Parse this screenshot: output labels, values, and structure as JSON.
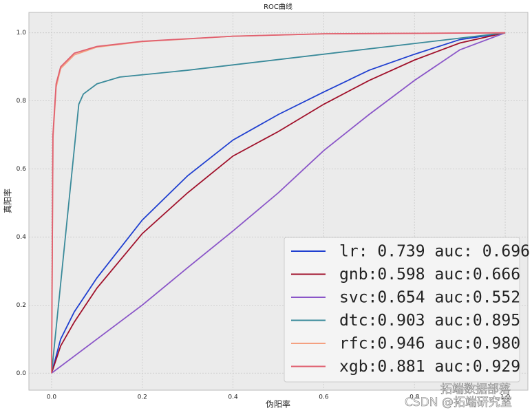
{
  "chart_data": {
    "type": "line",
    "title": "ROC曲线",
    "x_label": "伪阳率",
    "y_label": "真阳率",
    "xlim": [
      -0.05,
      1.05
    ],
    "ylim": [
      -0.05,
      1.06
    ],
    "grid": true,
    "legend": "lower right",
    "xticks": [
      {
        "value": 0,
        "label": "0.0"
      },
      {
        "value": 0.2,
        "label": "0.2"
      },
      {
        "value": 0.4,
        "label": "0.4"
      },
      {
        "value": 0.6,
        "label": "0.6"
      },
      {
        "value": 0.8,
        "label": "0.8"
      },
      {
        "value": 1,
        "label": "1.0"
      }
    ],
    "yticks": [
      {
        "value": 0,
        "label": "0.0"
      },
      {
        "value": 0.2,
        "label": "0.2"
      },
      {
        "value": 0.4,
        "label": "0.4"
      },
      {
        "value": 0.6,
        "label": "0.6"
      },
      {
        "value": 0.8,
        "label": "0.8"
      },
      {
        "value": 1,
        "label": "1.0"
      }
    ],
    "series": [
      {
        "name": "lr: 0.739 auc: 0.696",
        "color": "#1f3fd0",
        "x": [
          0,
          0.02,
          0.05,
          0.1,
          0.2,
          0.3,
          0.4,
          0.5,
          0.6,
          0.7,
          0.8,
          0.9,
          1
        ],
        "values": [
          0,
          0.1,
          0.18,
          0.28,
          0.45,
          0.58,
          0.685,
          0.76,
          0.826,
          0.89,
          0.937,
          0.98,
          1
        ]
      },
      {
        "name": "gnb:0.598 auc:0.666",
        "color": "#a0102a",
        "x": [
          0,
          0.02,
          0.05,
          0.1,
          0.2,
          0.3,
          0.4,
          0.5,
          0.6,
          0.7,
          0.8,
          0.9,
          1
        ],
        "values": [
          0,
          0.08,
          0.15,
          0.25,
          0.41,
          0.53,
          0.638,
          0.71,
          0.79,
          0.86,
          0.92,
          0.97,
          1
        ]
      },
      {
        "name": "svc:0.654 auc:0.552",
        "color": "#8a55c8",
        "x": [
          0,
          0.05,
          0.1,
          0.2,
          0.3,
          0.4,
          0.5,
          0.6,
          0.7,
          0.8,
          0.9,
          1
        ],
        "values": [
          0,
          0.05,
          0.1,
          0.2,
          0.31,
          0.418,
          0.53,
          0.654,
          0.76,
          0.86,
          0.95,
          1
        ]
      },
      {
        "name": "dtc:0.903 auc:0.895",
        "color": "#3a8a9a",
        "x": [
          0,
          0.06,
          0.07,
          0.1,
          0.15,
          0.3,
          1
        ],
        "values": [
          0,
          0.79,
          0.82,
          0.85,
          0.87,
          0.89,
          1
        ]
      },
      {
        "name": "rfc:0.946 auc:0.980",
        "color": "#f4a080",
        "x": [
          0,
          0.003,
          0.01,
          0.02,
          0.05,
          0.1,
          0.2,
          0.4,
          0.6,
          1
        ],
        "values": [
          0,
          0.69,
          0.84,
          0.895,
          0.935,
          0.958,
          0.974,
          0.99,
          0.997,
          1
        ]
      },
      {
        "name": "xgb:0.881 auc:0.929",
        "color": "#e06070",
        "x": [
          0,
          0.003,
          0.01,
          0.02,
          0.05,
          0.1,
          0.2,
          0.4,
          0.6,
          1
        ],
        "values": [
          0,
          0.7,
          0.85,
          0.9,
          0.94,
          0.96,
          0.975,
          0.99,
          0.997,
          1
        ]
      }
    ]
  },
  "watermark": [
    "拓端数据部落",
    "CSDN @拓端研究室"
  ]
}
